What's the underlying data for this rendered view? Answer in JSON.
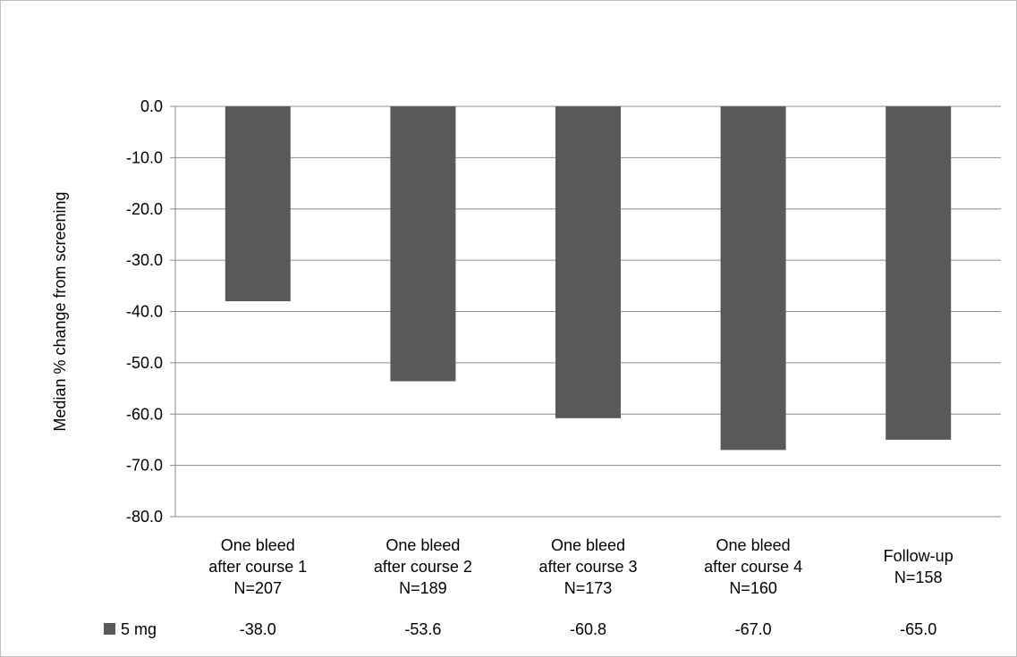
{
  "chart_data": {
    "type": "bar",
    "title": "",
    "xlabel": "",
    "ylabel": "Median % change from screening",
    "ylim": [
      -80,
      0
    ],
    "ytick_step": 10,
    "ytick_labels": [
      "0.0",
      "-10.0",
      "-20.0",
      "-30.0",
      "-40.0",
      "-50.0",
      "-60.0",
      "-70.0",
      "-80.0"
    ],
    "grid": true,
    "legend": "bottom-left data table",
    "categories": [
      [
        "One bleed",
        "after course 1",
        "N=207"
      ],
      [
        "One bleed",
        "after course 2",
        "N=189"
      ],
      [
        "One bleed",
        "after course 3",
        "N=173"
      ],
      [
        "One bleed",
        "after course 4",
        "N=160"
      ],
      [
        "Follow-up",
        "N=158"
      ]
    ],
    "series": [
      {
        "name": "5 mg",
        "color": "#595959",
        "values": [
          -38.0,
          -53.6,
          -60.8,
          -67.0,
          -65.0
        ],
        "value_labels": [
          "-38.0",
          "-53.6",
          "-60.8",
          "-67.0",
          "-65.0"
        ]
      }
    ]
  }
}
